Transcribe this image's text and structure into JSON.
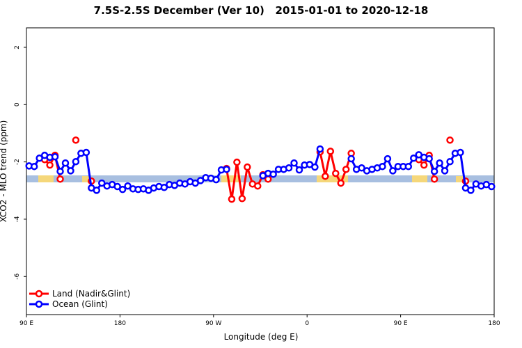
{
  "chart_data": {
    "type": "line",
    "title": "7.5S-2.5S December (Ver 10)   2015-01-01 to 2020-12-18",
    "x_label": "Longitude (deg E)",
    "y_label": "XCO2 - MLO trend (ppm)",
    "xlim": [
      90,
      540
    ],
    "xticks": [
      {
        "value": 90,
        "label": "90 E"
      },
      180,
      {
        "value": 270,
        "label": "90 W"
      },
      {
        "value": 360,
        "label": "0"
      },
      {
        "value": 450,
        "label": "90 E"
      },
      {
        "value": 540,
        "label": "180"
      }
    ],
    "ylim": [
      -7.33,
      2.68
    ],
    "yticks": [
      2,
      0,
      -2,
      -4,
      -6
    ],
    "legend": "bottom-left",
    "x": [
      92.5,
      97.5,
      102.5,
      107.5,
      112.5,
      117.5,
      122.5,
      127.5,
      132.5,
      137.5,
      142.5,
      147.5,
      152.5,
      157.5,
      162.5,
      167.5,
      172.5,
      177.5,
      182.5,
      187.5,
      192.5,
      197.5,
      202.5,
      207.5,
      212.5,
      217.5,
      222.5,
      227.5,
      232.5,
      237.5,
      242.5,
      247.5,
      252.5,
      257.5,
      262.5,
      267.5,
      272.5,
      277.5,
      282.5,
      287.5,
      292.5,
      297.5,
      302.5,
      307.5,
      312.5,
      317.5,
      322.5,
      327.5,
      332.5,
      337.5,
      342.5,
      347.5,
      352.5,
      357.5,
      362.5,
      367.5,
      372.5,
      377.5,
      382.5,
      387.5,
      392.5,
      397.5,
      402.5,
      407.5,
      412.5,
      417.5,
      422.5,
      427.5,
      432.5,
      437.5,
      442.5,
      447.5,
      452.5,
      457.5,
      462.5,
      467.5,
      472.5,
      477.5,
      482.5,
      487.5,
      492.5,
      497.5,
      502.5,
      507.5,
      512.5,
      517.5,
      522.5,
      527.5,
      532.5,
      537.5
    ],
    "series": [
      {
        "name": "Land (Nadir&Glint)",
        "color": "#ff0000",
        "values": [
          null,
          null,
          null,
          -1.92,
          -2.11,
          -1.77,
          -2.6,
          null,
          null,
          -1.24,
          null,
          null,
          -2.67,
          null,
          null,
          null,
          null,
          null,
          null,
          null,
          null,
          null,
          null,
          null,
          null,
          null,
          null,
          null,
          null,
          null,
          null,
          null,
          null,
          null,
          null,
          null,
          null,
          null,
          -2.23,
          -3.3,
          -2.01,
          -3.28,
          -2.18,
          -2.77,
          -2.84,
          -2.45,
          -2.6,
          null,
          null,
          null,
          null,
          null,
          null,
          null,
          null,
          null,
          -1.65,
          -2.5,
          -1.63,
          -2.4,
          -2.74,
          -2.26,
          -1.7,
          null,
          null,
          null,
          null,
          null,
          null,
          null,
          null,
          null,
          null,
          null,
          null,
          -1.92,
          -2.11,
          -1.77,
          -2.6,
          null,
          null,
          -1.24,
          null,
          null,
          -2.67,
          null,
          null,
          null,
          null,
          null
        ]
      },
      {
        "name": "Ocean (Glint)",
        "color": "#0000ff",
        "values": [
          -2.14,
          -2.16,
          -1.87,
          -1.77,
          -1.84,
          -1.82,
          -2.33,
          -2.04,
          -2.31,
          -1.99,
          -1.7,
          -1.67,
          -2.91,
          -2.99,
          -2.74,
          -2.84,
          -2.79,
          -2.86,
          -2.96,
          -2.84,
          -2.94,
          -2.96,
          -2.94,
          -2.99,
          -2.91,
          -2.86,
          -2.89,
          -2.79,
          -2.82,
          -2.74,
          -2.77,
          -2.69,
          -2.74,
          -2.65,
          -2.55,
          -2.57,
          -2.62,
          -2.28,
          -2.26,
          null,
          null,
          null,
          null,
          null,
          null,
          -2.48,
          -2.4,
          -2.43,
          -2.26,
          -2.26,
          -2.21,
          -2.04,
          -2.28,
          -2.11,
          -2.09,
          -2.18,
          -1.55,
          null,
          null,
          null,
          null,
          null,
          -1.89,
          -2.26,
          -2.21,
          -2.31,
          -2.26,
          -2.21,
          -2.16,
          -1.89,
          -2.31,
          -2.16,
          -2.16,
          -2.16,
          -1.87,
          -1.75,
          -1.84,
          -1.89,
          -2.33,
          -2.04,
          -2.31,
          -1.99,
          -1.7,
          -1.67,
          -2.91,
          -2.99,
          -2.77,
          -2.84,
          -2.79,
          -2.86
        ]
      }
    ]
  }
}
